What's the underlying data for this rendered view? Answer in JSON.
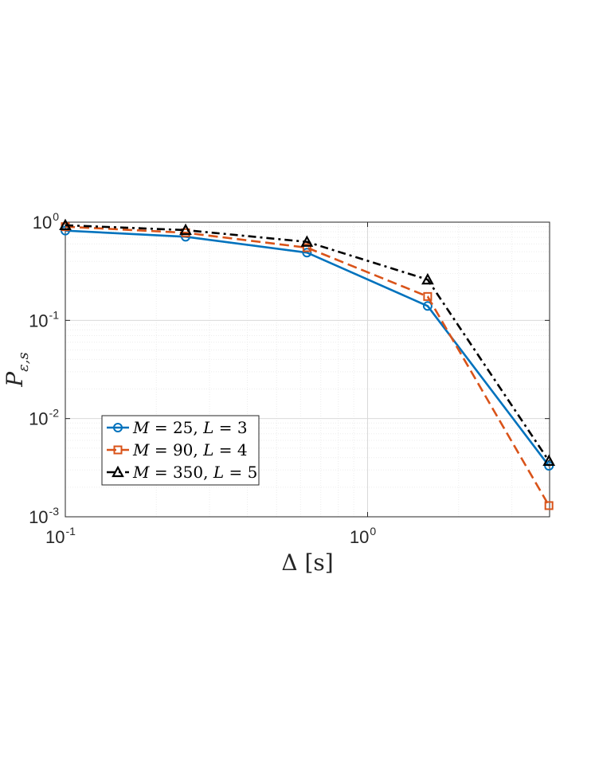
{
  "chart_data": {
    "type": "line",
    "x_scale": "log",
    "y_scale": "log",
    "xlim": [
      0.1,
      4
    ],
    "ylim": [
      0.001,
      1
    ],
    "grid": true,
    "minor_grid": true,
    "xlabel": "Δ [s]",
    "ylabel": "P_{ε,s}",
    "x_ticks": [
      {
        "value": 0.1,
        "base": "10",
        "exp": "-1"
      },
      {
        "value": 1,
        "base": "10",
        "exp": "0"
      }
    ],
    "y_ticks": [
      {
        "value": 1,
        "base": "10",
        "exp": "0"
      },
      {
        "value": 0.1,
        "base": "10",
        "exp": "-1"
      },
      {
        "value": 0.01,
        "base": "10",
        "exp": "-2"
      },
      {
        "value": 0.001,
        "base": "10",
        "exp": "-3"
      }
    ],
    "legend_position": "lower-left",
    "x": [
      0.1,
      0.25,
      0.63,
      1.58,
      3.98
    ],
    "series": [
      {
        "name": "M = 25, L = 3",
        "name_parts": [
          "M",
          " = 25, ",
          "L",
          " = 3"
        ],
        "color": "#0072BD",
        "dash": "solid",
        "marker": "circle",
        "values": [
          0.82,
          0.71,
          0.49,
          0.14,
          0.0033
        ]
      },
      {
        "name": "M = 90, L = 4",
        "name_parts": [
          "M",
          " = 90, ",
          "L",
          " = 4"
        ],
        "color": "#D95319",
        "dash": "dashed",
        "marker": "square",
        "values": [
          0.9,
          0.78,
          0.55,
          0.175,
          0.0013
        ]
      },
      {
        "name": "M = 350, L = 5",
        "name_parts": [
          "M",
          " = 350, ",
          "L",
          " = 5"
        ],
        "color": "#000000",
        "dash": "dashdot",
        "marker": "triangle",
        "values": [
          0.93,
          0.83,
          0.63,
          0.26,
          0.0037
        ]
      }
    ]
  }
}
